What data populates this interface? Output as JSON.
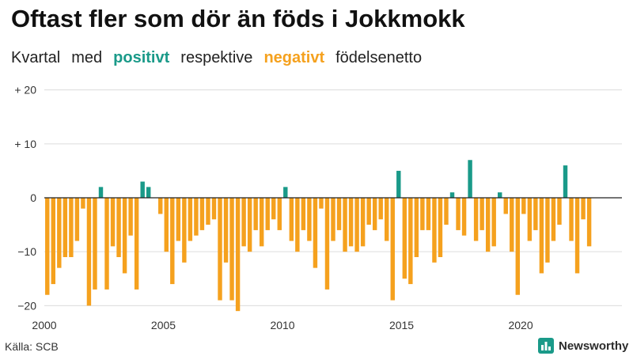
{
  "header": {
    "title": "Oftast fler som dör än föds i Jokkmokk",
    "subtitle_parts": [
      "Kvartal",
      "med",
      "positivt",
      "respektive",
      "negativt",
      "födelsenetto"
    ]
  },
  "colors": {
    "positive": "#1a9a89",
    "negative": "#f5a11e"
  },
  "footer": {
    "source": "Källa: SCB",
    "brand": "Newsworthy"
  },
  "chart_data": {
    "type": "bar",
    "ylim": [
      -22,
      22
    ],
    "yticks": [
      20,
      10,
      0,
      -10,
      -20
    ],
    "ytick_labels": [
      "+ 20",
      "+ 10",
      "0",
      "−10",
      "−20"
    ],
    "xlim": [
      2000,
      2024.25
    ],
    "xticks": [
      2000,
      2005,
      2010,
      2015,
      2020
    ],
    "xtick_labels": [
      "2000",
      "2005",
      "2010",
      "2015",
      "2020"
    ],
    "grid": true,
    "start_year": 2000,
    "values": [
      -18,
      -16,
      -13,
      -11,
      -11,
      -8,
      -2,
      -20,
      -17,
      2,
      -17,
      -9,
      -11,
      -14,
      -7,
      -17,
      3,
      2,
      0,
      -3,
      -10,
      -16,
      -8,
      -12,
      -8,
      -7,
      -6,
      -5,
      -4,
      -19,
      -12,
      -19,
      -21,
      -9,
      -10,
      -6,
      -9,
      -6,
      -4,
      -6,
      2,
      -8,
      -10,
      -6,
      -8,
      -13,
      -2,
      -17,
      -8,
      -6,
      -10,
      -9,
      -10,
      -9,
      -5,
      -6,
      -4,
      -8,
      -19,
      5,
      -15,
      -16,
      -11,
      -6,
      -6,
      -12,
      -11,
      -5,
      1,
      -6,
      -7,
      7,
      -8,
      -6,
      -10,
      -9,
      1,
      -3,
      -10,
      -18,
      -3,
      -8,
      -6,
      -14,
      -12,
      -8,
      -5,
      6,
      -8,
      -14,
      -4,
      -9
    ]
  }
}
